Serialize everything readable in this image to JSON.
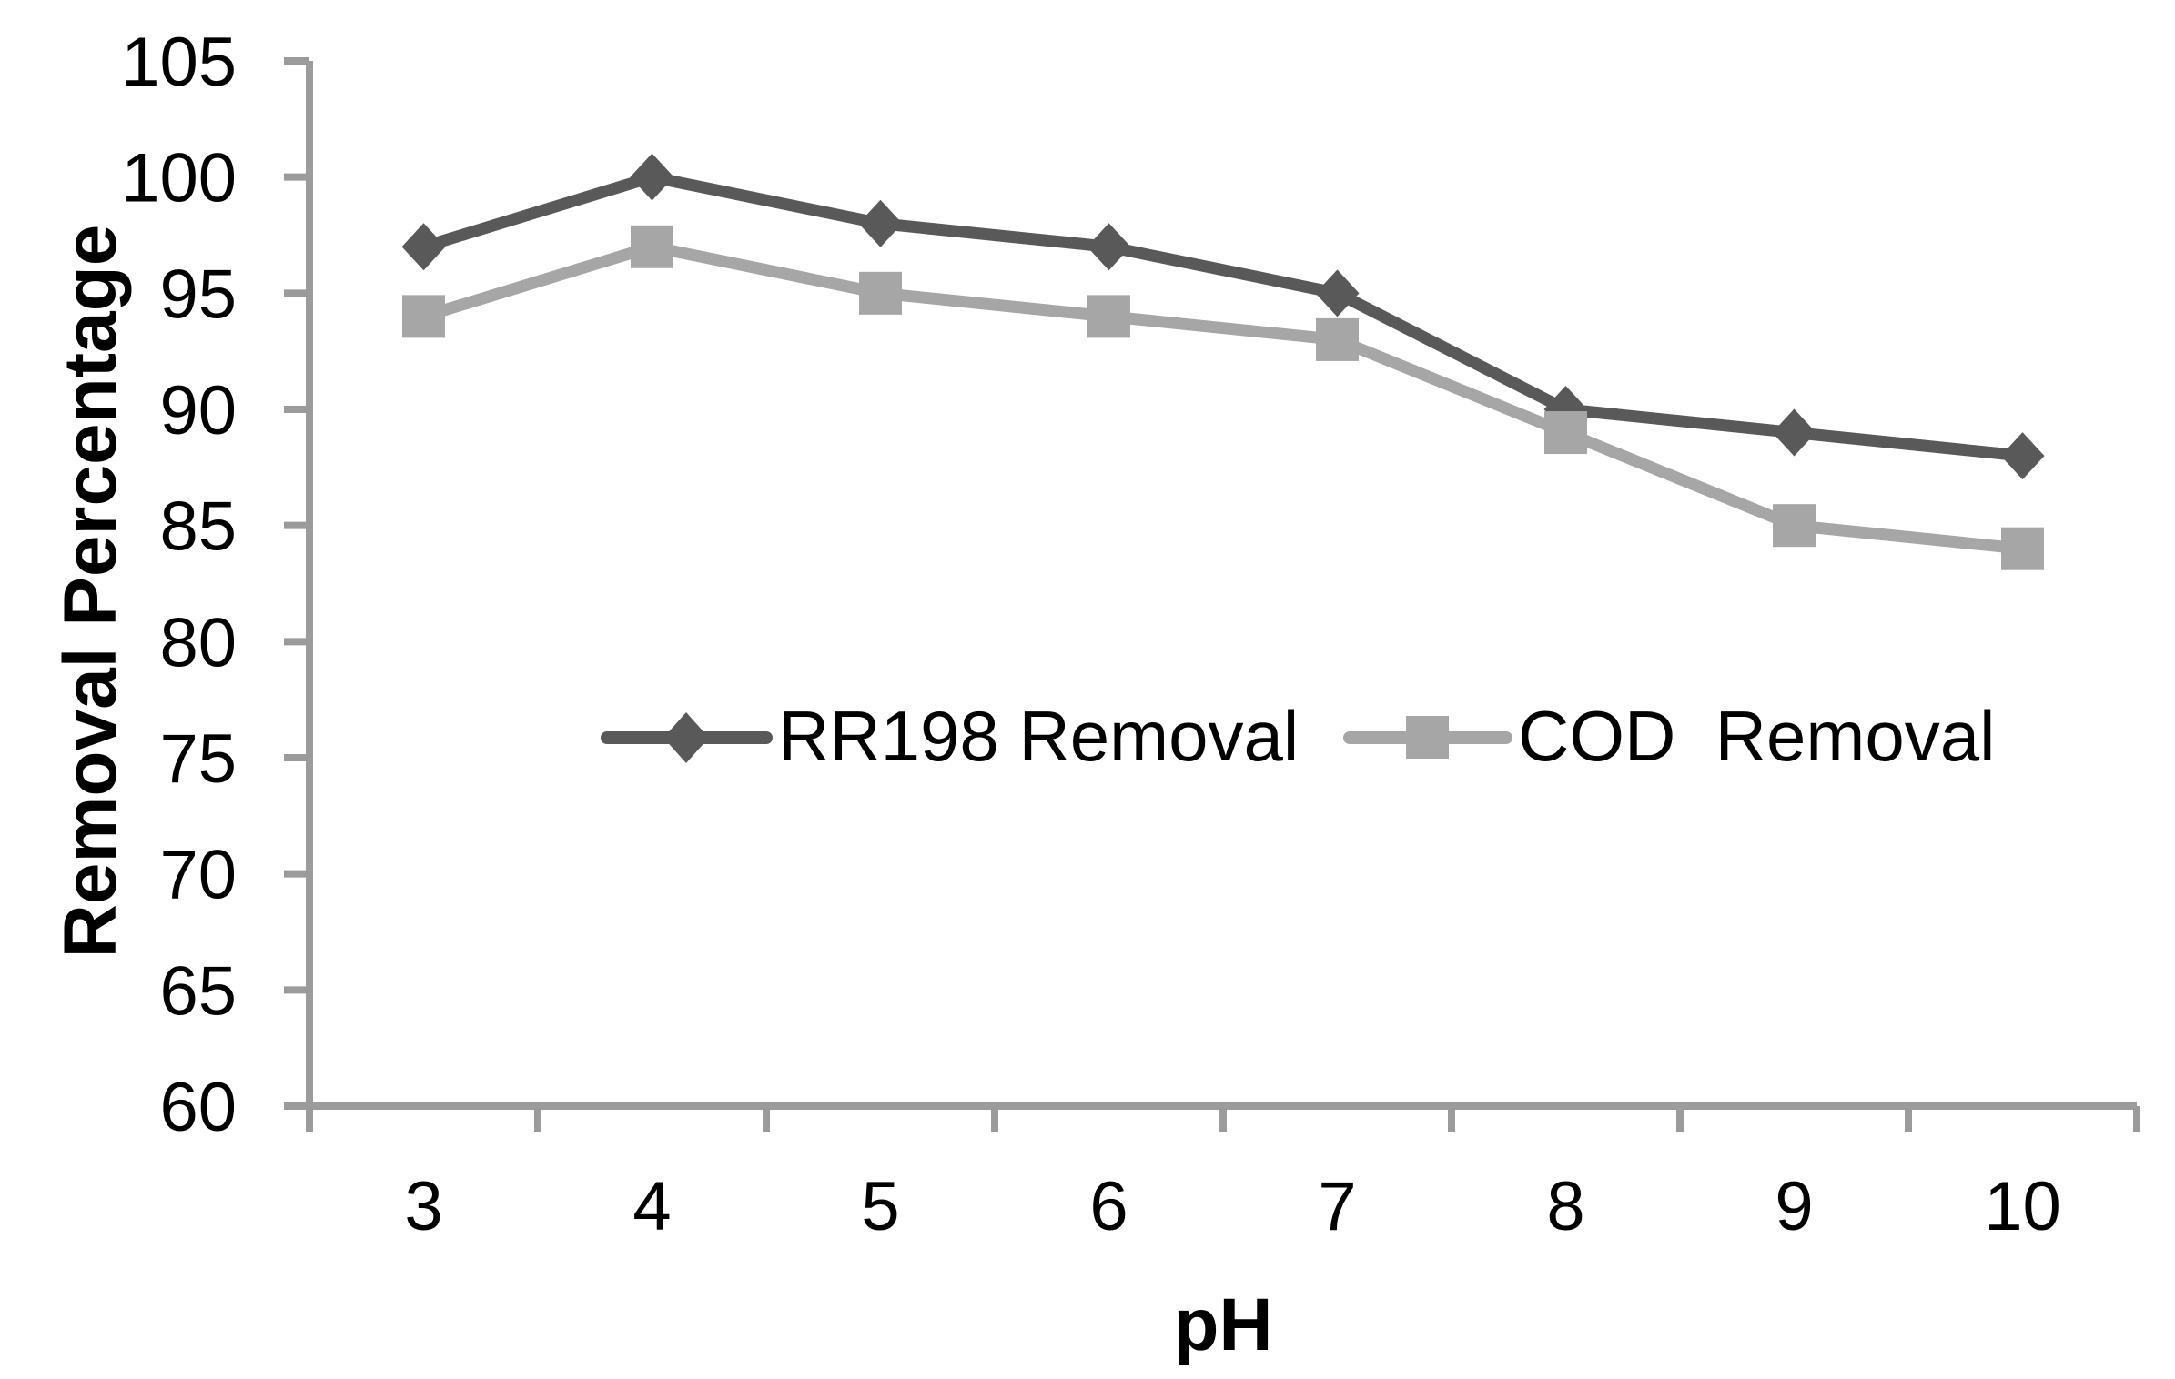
{
  "chart_data": {
    "type": "line",
    "title": "",
    "xlabel": "pH",
    "ylabel": "Removal Percentage",
    "categories": [
      "3",
      "4",
      "5",
      "6",
      "7",
      "8",
      "9",
      "10"
    ],
    "series": [
      {
        "name": "RR198 Removal",
        "values": [
          97,
          100,
          98,
          97,
          95,
          90,
          89,
          88
        ],
        "color": "#595959",
        "marker": "diamond"
      },
      {
        "name": "COD  Removal",
        "values": [
          94,
          97,
          95,
          94,
          93,
          89,
          85,
          84
        ],
        "color": "#A6A6A6",
        "marker": "square"
      }
    ],
    "y_axis": {
      "min": 60,
      "max": 105,
      "step": 5,
      "tick_labels": [
        "60",
        "65",
        "70",
        "75",
        "80",
        "85",
        "90",
        "95",
        "100",
        "105"
      ]
    },
    "x_axis": {
      "tick_labels": [
        "3",
        "4",
        "5",
        "6",
        "7",
        "8",
        "9",
        "10"
      ]
    },
    "grid": false,
    "legend_position": "inside-plot-middle",
    "axis_color": "#9B9B9B",
    "text_color": "#000000",
    "background_color": "#FFFFFF"
  }
}
